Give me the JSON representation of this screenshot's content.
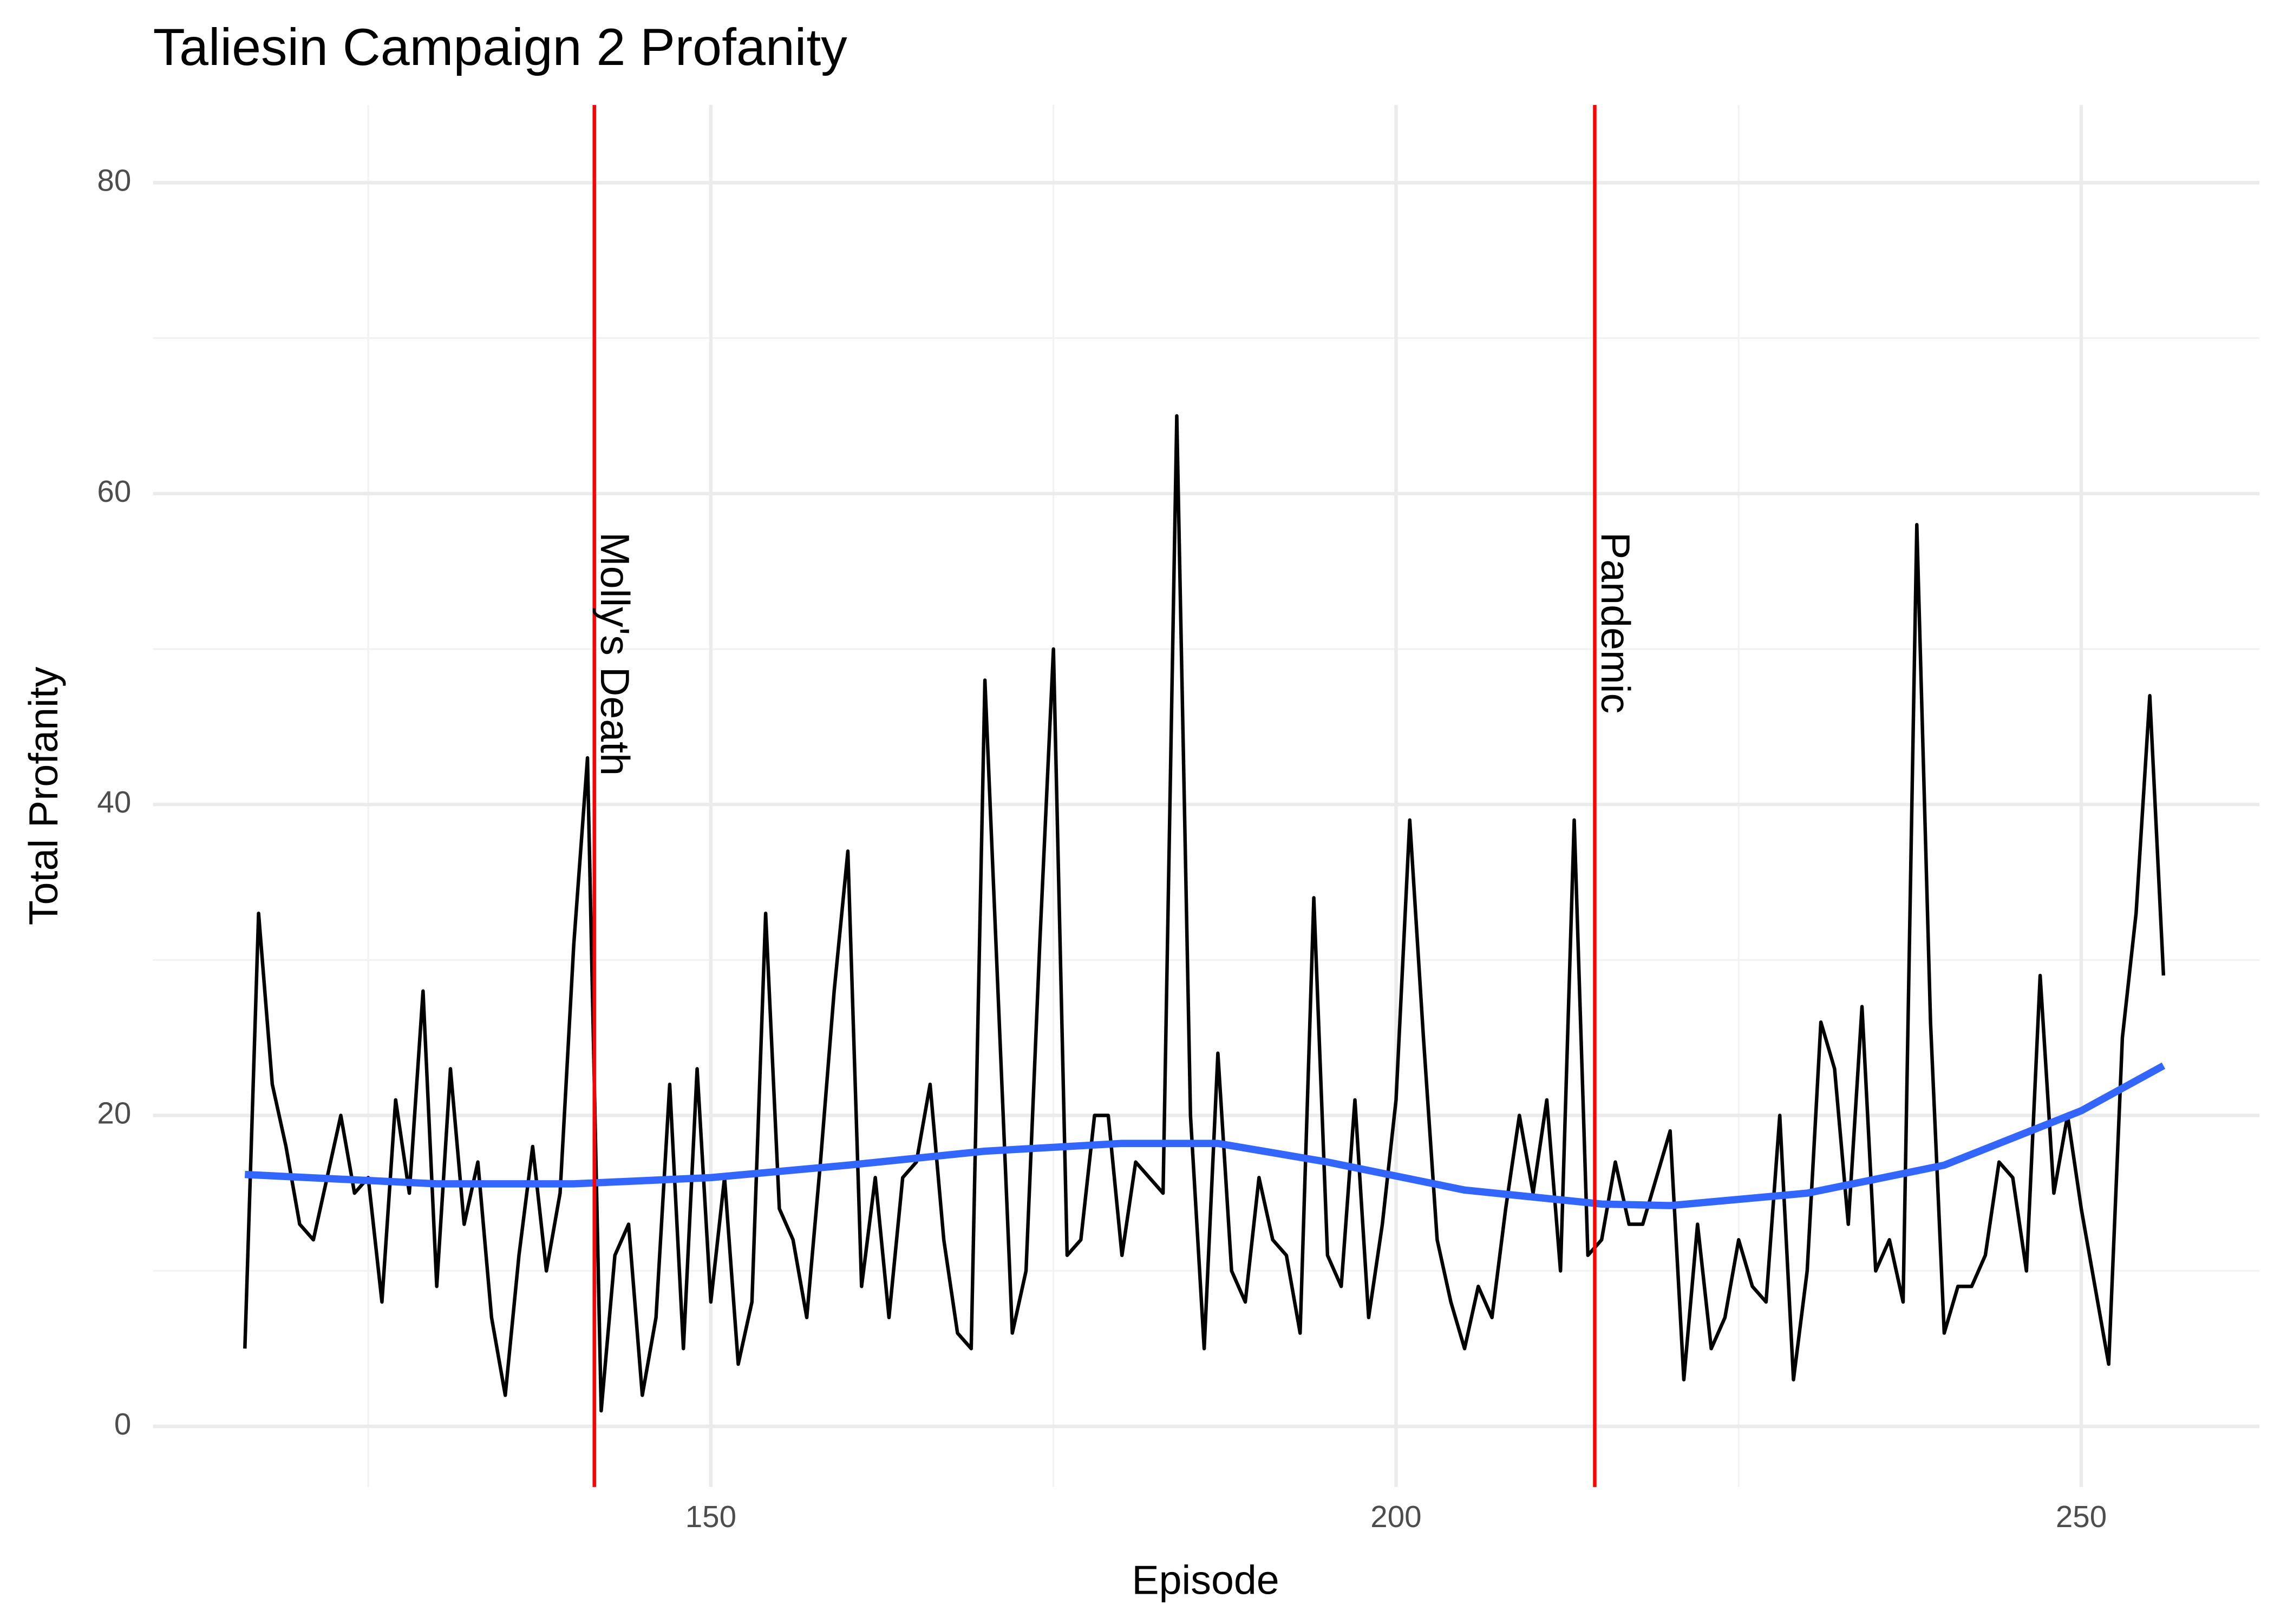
{
  "chart_data": {
    "type": "line",
    "title": "Taliesin Campaign 2 Profanity",
    "x_label": "Episode",
    "y_label": "Total Profanity",
    "xlim": [
      109.3,
      263
    ],
    "ylim": [
      -3.9,
      85
    ],
    "xticks": [
      150,
      200,
      250
    ],
    "yticks": [
      0,
      20,
      40,
      60,
      80
    ],
    "x_minor_grid": [
      125,
      175,
      225
    ],
    "y_minor_grid": [
      10,
      30,
      50,
      70
    ],
    "grid": true,
    "series": [
      {
        "color": "#000000",
        "x": [
          116,
          117,
          118,
          119,
          120,
          121,
          122,
          123,
          124,
          125,
          126,
          127,
          128,
          129,
          130,
          131,
          132,
          133,
          134,
          135,
          136,
          137,
          138,
          139,
          140,
          141,
          142,
          143,
          144,
          145,
          146,
          147,
          148,
          149,
          150,
          151,
          152,
          153,
          154,
          155,
          156,
          157,
          158,
          159,
          160,
          161,
          162,
          163,
          164,
          165,
          166,
          167,
          168,
          169,
          170,
          171,
          172,
          173,
          174,
          175,
          176,
          177,
          178,
          179,
          180,
          181,
          182,
          183,
          184,
          185,
          186,
          187,
          188,
          189,
          190,
          191,
          192,
          193,
          194,
          195,
          196,
          197,
          198,
          199,
          200,
          201,
          202,
          203,
          204,
          205,
          206,
          207,
          208,
          209,
          210,
          211,
          212,
          213,
          214,
          215,
          216,
          217,
          218,
          219,
          220,
          221,
          222,
          223,
          224,
          225,
          226,
          227,
          228,
          229,
          230,
          231,
          232,
          233,
          234,
          235,
          236,
          237,
          238,
          239,
          240,
          241,
          242,
          243,
          244,
          245,
          246,
          247,
          248,
          249,
          250,
          251,
          252,
          253,
          254,
          255,
          256
        ],
        "values": [
          5,
          33,
          22,
          18,
          13,
          12,
          16,
          20,
          15,
          16,
          8,
          21,
          15,
          28,
          9,
          23,
          13,
          17,
          7,
          2,
          11,
          18,
          10,
          15,
          31,
          43,
          1,
          11,
          13,
          2,
          7,
          22,
          5,
          23,
          8,
          16,
          4,
          8,
          33,
          14,
          12,
          7,
          17,
          28,
          37,
          9,
          16,
          7,
          16,
          17,
          22,
          12,
          6,
          5,
          48,
          27,
          6,
          10,
          31,
          50,
          11,
          12,
          20,
          20,
          11,
          17,
          16,
          15,
          65,
          20,
          5,
          24,
          10,
          8,
          16,
          12,
          11,
          6,
          34,
          11,
          9,
          21,
          7,
          13,
          21,
          39,
          25,
          12,
          8,
          5,
          9,
          7,
          14,
          20,
          15,
          21,
          10,
          39,
          11,
          12,
          17,
          13,
          13,
          16,
          19,
          3,
          13,
          5,
          7,
          12,
          9,
          8,
          20,
          3,
          10,
          26,
          23,
          13,
          27,
          10,
          12,
          8,
          58,
          26,
          6,
          9,
          9,
          11,
          17,
          16,
          10,
          29,
          15,
          20,
          14,
          9,
          4,
          25,
          33,
          47,
          29
        ]
      },
      {
        "color": "#3366ff",
        "x": [
          116,
          130,
          140,
          150,
          160,
          170,
          180,
          187,
          195,
          205,
          215,
          220,
          230,
          240,
          250,
          256
        ],
        "values": [
          16.2,
          15.6,
          15.6,
          16,
          16.8,
          17.7,
          18.2,
          18.2,
          17,
          15.2,
          14.3,
          14.2,
          15,
          16.8,
          20.3,
          23.2
        ]
      }
    ],
    "annotations": [
      {
        "x": 141.5,
        "text": "Molly's Death",
        "color": "#ff0000"
      },
      {
        "x": 214.5,
        "text": "Pandemic",
        "color": "#ff0000"
      }
    ]
  }
}
